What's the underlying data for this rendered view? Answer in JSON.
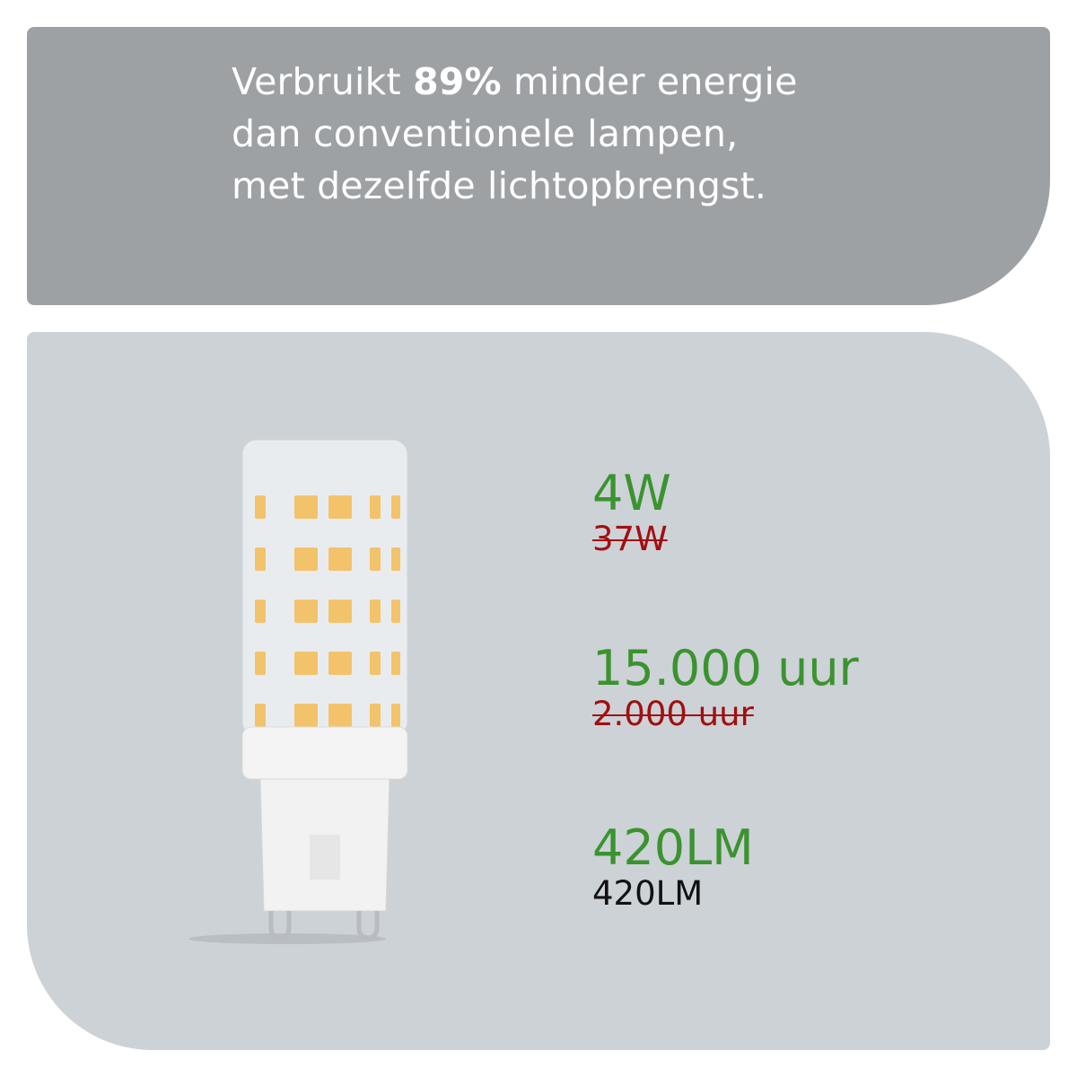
{
  "headline": {
    "line1_pre": "Verbruikt ",
    "line1_highlight": "89%",
    "line1_post": " minder energie",
    "line2": "dan conventionele lampen,",
    "line3": "met dezelfde lichtopbrengst."
  },
  "stats": [
    {
      "new": "4W",
      "old": "37W",
      "old_struck": true
    },
    {
      "new": "15.000 uur",
      "old": "2.000 uur",
      "old_struck": true
    },
    {
      "new": "420LM",
      "old": "420LM",
      "old_struck": false
    }
  ],
  "colors": {
    "new_value": "#3b9330",
    "old_value": "#a01010",
    "top_panel": "#9ea1a4",
    "bottom_panel": "#cdd2d7"
  },
  "product_image": "g9-led-bulb"
}
